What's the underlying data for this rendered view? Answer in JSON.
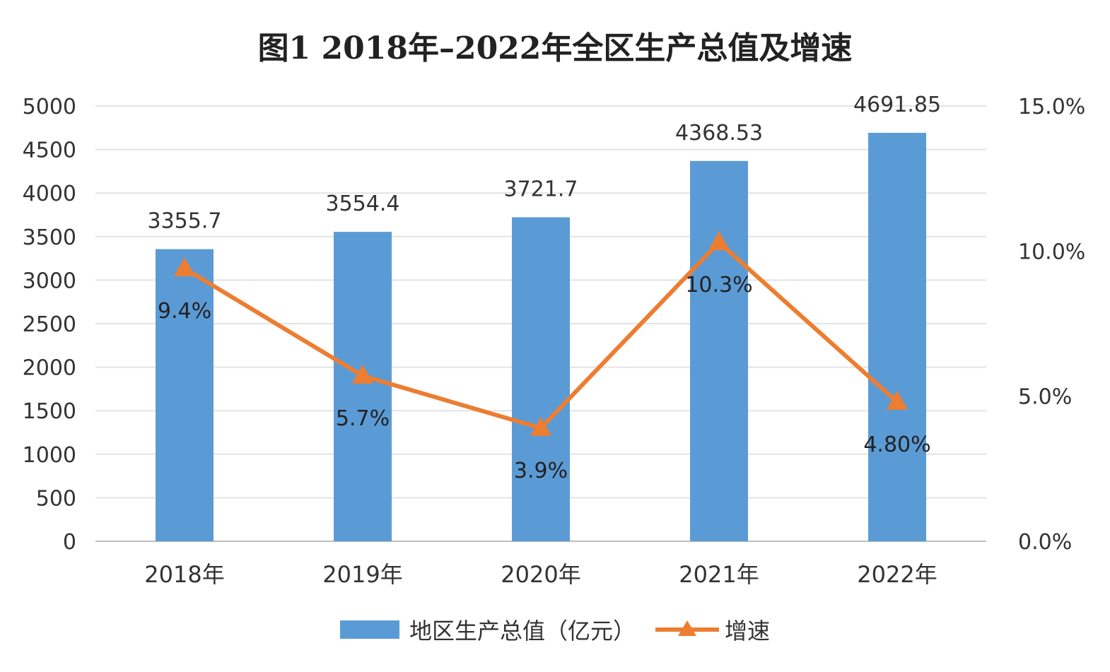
{
  "chart_data": {
    "type": "bar",
    "title": "图1  2018年–2022年全区生产总值及增速",
    "categories": [
      "2018年",
      "2019年",
      "2020年",
      "2021年",
      "2022年"
    ],
    "series": [
      {
        "name": "地区生产总值（亿元）",
        "type": "bar",
        "axis": "left",
        "values": [
          3355.7,
          3554.4,
          3721.7,
          4368.53,
          4691.85
        ],
        "labels": [
          "3355.7",
          "3554.4",
          "3721.7",
          "4368.53",
          "4691.85"
        ],
        "color": "#5b9bd5"
      },
      {
        "name": "增速",
        "type": "line",
        "axis": "right",
        "marker": "triangle",
        "values": [
          9.4,
          5.7,
          3.9,
          10.3,
          4.8
        ],
        "labels": [
          "9.4%",
          "5.7%",
          "3.9%",
          "10.3%",
          "4.80%"
        ],
        "color": "#ed7d31"
      }
    ],
    "y_left": {
      "min": 0,
      "max": 5000,
      "ticks": [
        "0",
        "500",
        "1000",
        "1500",
        "2000",
        "2500",
        "3000",
        "3500",
        "4000",
        "4500",
        "5000"
      ]
    },
    "y_right": {
      "min": 0,
      "max": 15,
      "ticks": [
        "0.0%",
        "5.0%",
        "10.0%",
        "15.0%"
      ]
    },
    "grid": true,
    "legend_position": "bottom"
  }
}
